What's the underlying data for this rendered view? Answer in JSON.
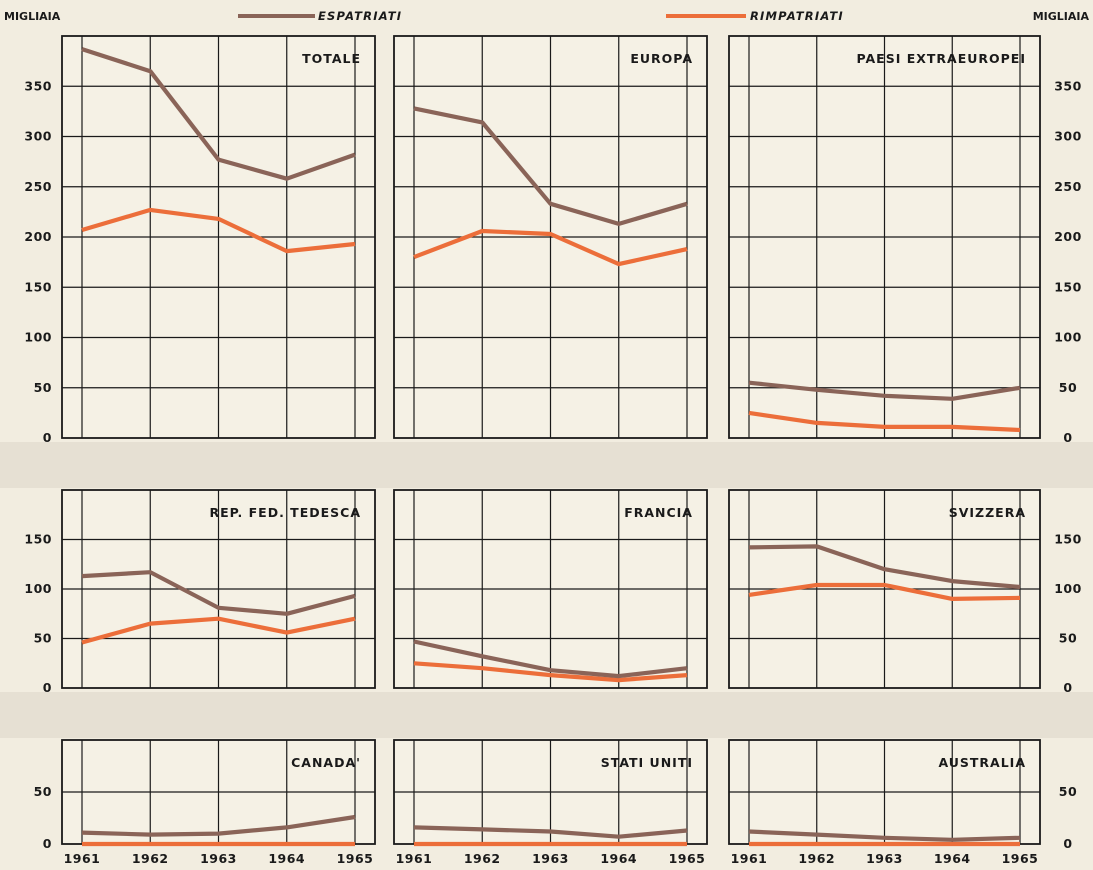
{
  "legend": {
    "espatriati": "ESPATRIATI",
    "rimpatriati": "RIMPATRIATI"
  },
  "units_left": "MIGLIAIA",
  "units_right": "MIGLIAIA",
  "colors": {
    "espatriati": "#8a6458",
    "rimpatriati": "#ec6e3a",
    "grid": "#1a1a1a",
    "panel_bg": "#f5f1e5",
    "band": "#e3ddd0"
  },
  "chart_data": [
    {
      "type": "line",
      "title": "TOTALE",
      "x": [
        1961,
        1962,
        1963,
        1964,
        1965
      ],
      "ylim": [
        0,
        400
      ],
      "yticks": [
        0,
        50,
        100,
        150,
        200,
        250,
        300,
        350
      ],
      "series": [
        {
          "name": "ESPATRIATI",
          "values": [
            387,
            365,
            277,
            258,
            282
          ]
        },
        {
          "name": "RIMPATRIATI",
          "values": [
            207,
            227,
            218,
            186,
            193
          ]
        }
      ]
    },
    {
      "type": "line",
      "title": "EUROPA",
      "x": [
        1961,
        1962,
        1963,
        1964,
        1965
      ],
      "ylim": [
        0,
        400
      ],
      "yticks": [
        0,
        50,
        100,
        150,
        200,
        250,
        300,
        350
      ],
      "series": [
        {
          "name": "ESPATRIATI",
          "values": [
            328,
            314,
            233,
            213,
            233
          ]
        },
        {
          "name": "RIMPATRIATI",
          "values": [
            180,
            206,
            203,
            173,
            188
          ]
        }
      ]
    },
    {
      "type": "line",
      "title": "PAESI  EXTRAEUROPEI",
      "x": [
        1961,
        1962,
        1963,
        1964,
        1965
      ],
      "ylim": [
        0,
        400
      ],
      "yticks": [
        0,
        50,
        100,
        150,
        200,
        250,
        300,
        350
      ],
      "series": [
        {
          "name": "ESPATRIATI",
          "values": [
            55,
            48,
            42,
            39,
            50
          ]
        },
        {
          "name": "RIMPATRIATI",
          "values": [
            25,
            15,
            11,
            11,
            8
          ]
        }
      ]
    },
    {
      "type": "line",
      "title": "REP.  FED.  TEDESCA",
      "x": [
        1961,
        1962,
        1963,
        1964,
        1965
      ],
      "ylim": [
        0,
        200
      ],
      "yticks": [
        0,
        50,
        100,
        150
      ],
      "series": [
        {
          "name": "ESPATRIATI",
          "values": [
            113,
            117,
            81,
            75,
            93
          ]
        },
        {
          "name": "RIMPATRIATI",
          "values": [
            46,
            65,
            70,
            56,
            70
          ]
        }
      ]
    },
    {
      "type": "line",
      "title": "FRANCIA",
      "x": [
        1961,
        1962,
        1963,
        1964,
        1965
      ],
      "ylim": [
        0,
        200
      ],
      "yticks": [
        0,
        50,
        100,
        150
      ],
      "series": [
        {
          "name": "ESPATRIATI",
          "values": [
            47,
            32,
            18,
            12,
            20
          ]
        },
        {
          "name": "RIMPATRIATI",
          "values": [
            25,
            20,
            13,
            8,
            13
          ]
        }
      ]
    },
    {
      "type": "line",
      "title": "SVIZZERA",
      "x": [
        1961,
        1962,
        1963,
        1964,
        1965
      ],
      "ylim": [
        0,
        200
      ],
      "yticks": [
        0,
        50,
        100,
        150
      ],
      "series": [
        {
          "name": "ESPATRIATI",
          "values": [
            142,
            143,
            120,
            108,
            102
          ]
        },
        {
          "name": "RIMPATRIATI",
          "values": [
            94,
            104,
            104,
            90,
            91
          ]
        }
      ]
    },
    {
      "type": "line",
      "title": "CANADA'",
      "x": [
        1961,
        1962,
        1963,
        1964,
        1965
      ],
      "ylim": [
        0,
        100
      ],
      "yticks": [
        0,
        50
      ],
      "series": [
        {
          "name": "ESPATRIATI",
          "values": [
            11,
            9,
            10,
            16,
            26
          ]
        },
        {
          "name": "RIMPATRIATI",
          "values": [
            0,
            0,
            0,
            0,
            0
          ]
        }
      ]
    },
    {
      "type": "line",
      "title": "STATI  UNITI",
      "x": [
        1961,
        1962,
        1963,
        1964,
        1965
      ],
      "ylim": [
        0,
        100
      ],
      "yticks": [
        0,
        50
      ],
      "series": [
        {
          "name": "ESPATRIATI",
          "values": [
            16,
            14,
            12,
            7,
            13
          ]
        },
        {
          "name": "RIMPATRIATI",
          "values": [
            0,
            0,
            0,
            0,
            0
          ]
        }
      ]
    },
    {
      "type": "line",
      "title": "AUSTRALIA",
      "x": [
        1961,
        1962,
        1963,
        1964,
        1965
      ],
      "ylim": [
        0,
        100
      ],
      "yticks": [
        0,
        50
      ],
      "series": [
        {
          "name": "ESPATRIATI",
          "values": [
            12,
            9,
            6,
            4,
            6
          ]
        },
        {
          "name": "RIMPATRIATI",
          "values": [
            0,
            0,
            0,
            0,
            0
          ]
        }
      ]
    }
  ]
}
